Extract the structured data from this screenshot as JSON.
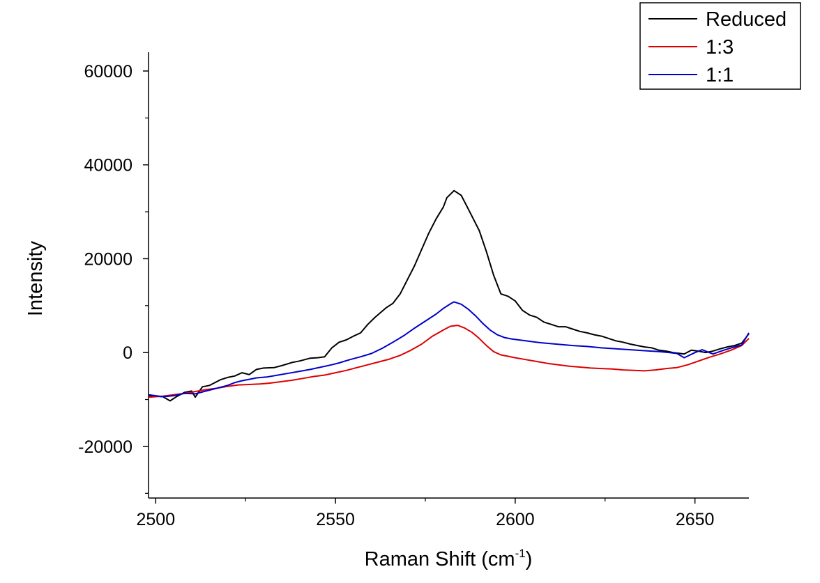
{
  "chart_data": {
    "type": "line",
    "xlabel": "Raman Shift (cm",
    "xlabel_sup": "-1",
    "xlabel_suffix": ")",
    "ylabel": "Intensity",
    "xlim": [
      2498,
      2665
    ],
    "ylim": [
      -31000,
      64000
    ],
    "xticks": [
      2500,
      2550,
      2600,
      2650
    ],
    "xticks_minor": [
      2525,
      2575,
      2625
    ],
    "yticks": [
      -20000,
      0,
      20000,
      40000,
      60000
    ],
    "yticks_minor": [
      -30000,
      -10000,
      10000,
      30000,
      50000
    ],
    "grid": false,
    "legend_position": "top-right",
    "series": [
      {
        "name": "Reduced",
        "color": "#000000",
        "x": [
          2498,
          2502,
          2504,
          2506,
          2508,
          2510,
          2511,
          2513,
          2515,
          2518,
          2520,
          2522,
          2524,
          2526,
          2528,
          2530,
          2533,
          2535,
          2538,
          2540,
          2543,
          2545,
          2547,
          2549,
          2551,
          2553,
          2555,
          2557,
          2559,
          2561,
          2564,
          2566,
          2568,
          2570,
          2572,
          2574,
          2576,
          2578,
          2580,
          2581,
          2583,
          2585,
          2587,
          2590,
          2592,
          2594,
          2596,
          2598,
          2600,
          2602,
          2604,
          2606,
          2608,
          2610,
          2612,
          2614,
          2616,
          2618,
          2620,
          2622,
          2624,
          2626,
          2628,
          2630,
          2632,
          2634,
          2636,
          2638,
          2640,
          2642,
          2644,
          2646,
          2647,
          2649,
          2651,
          2653,
          2655,
          2657,
          2659,
          2661,
          2663,
          2665
        ],
        "values": [
          -9200,
          -9400,
          -10300,
          -9300,
          -8500,
          -8200,
          -9500,
          -7300,
          -7000,
          -5800,
          -5300,
          -5000,
          -4300,
          -4700,
          -3600,
          -3300,
          -3200,
          -2800,
          -2100,
          -1800,
          -1200,
          -1100,
          -900,
          1000,
          2200,
          2700,
          3500,
          4200,
          6000,
          7500,
          9500,
          10500,
          12500,
          15500,
          18500,
          22000,
          25500,
          28500,
          31000,
          33000,
          34500,
          33500,
          30500,
          26000,
          21500,
          16500,
          12500,
          12000,
          11000,
          9000,
          8000,
          7500,
          6500,
          6000,
          5500,
          5500,
          5000,
          4500,
          4200,
          3800,
          3500,
          3000,
          2500,
          2200,
          1800,
          1500,
          1200,
          1000,
          500,
          300,
          0,
          -200,
          -300,
          500,
          300,
          0,
          300,
          800,
          1200,
          1500,
          2000,
          4000
        ]
      },
      {
        "name": "1:3",
        "color": "#dd0000",
        "x": [
          2498,
          2502,
          2505,
          2508,
          2511,
          2514,
          2517,
          2520,
          2523,
          2526,
          2529,
          2532,
          2535,
          2538,
          2541,
          2544,
          2547,
          2550,
          2553,
          2556,
          2559,
          2562,
          2565,
          2568,
          2571,
          2574,
          2577,
          2580,
          2582,
          2584,
          2586,
          2588,
          2590,
          2592,
          2594,
          2596,
          2598,
          2600,
          2603,
          2606,
          2609,
          2612,
          2615,
          2618,
          2621,
          2624,
          2627,
          2630,
          2633,
          2636,
          2639,
          2642,
          2645,
          2648,
          2651,
          2654,
          2657,
          2660,
          2663,
          2665
        ],
        "values": [
          -9500,
          -9300,
          -9000,
          -8700,
          -8300,
          -7900,
          -7600,
          -7200,
          -6900,
          -6800,
          -6700,
          -6500,
          -6200,
          -5900,
          -5500,
          -5100,
          -4800,
          -4300,
          -3800,
          -3200,
          -2600,
          -2000,
          -1400,
          -600,
          500,
          1800,
          3500,
          4800,
          5600,
          5800,
          5200,
          4300,
          3000,
          1500,
          200,
          -500,
          -800,
          -1100,
          -1500,
          -1900,
          -2300,
          -2600,
          -2900,
          -3100,
          -3300,
          -3400,
          -3500,
          -3700,
          -3800,
          -3900,
          -3700,
          -3400,
          -3200,
          -2600,
          -1800,
          -1000,
          -300,
          500,
          1500,
          3000
        ]
      },
      {
        "name": "1:1",
        "color": "#0000cc",
        "x": [
          2498,
          2502,
          2505,
          2508,
          2511,
          2514,
          2517,
          2520,
          2522,
          2524,
          2526,
          2528,
          2531,
          2534,
          2537,
          2540,
          2543,
          2546,
          2549,
          2551,
          2554,
          2557,
          2560,
          2563,
          2566,
          2569,
          2572,
          2575,
          2578,
          2580,
          2582,
          2583,
          2585,
          2587,
          2589,
          2591,
          2593,
          2595,
          2597,
          2599,
          2601,
          2604,
          2607,
          2610,
          2613,
          2616,
          2620,
          2624,
          2628,
          2632,
          2636,
          2640,
          2643,
          2645,
          2647,
          2650,
          2652,
          2655,
          2658,
          2661,
          2663,
          2665
        ],
        "values": [
          -9000,
          -9400,
          -9200,
          -8700,
          -8800,
          -8200,
          -7600,
          -7000,
          -6400,
          -6000,
          -5700,
          -5400,
          -5200,
          -4800,
          -4400,
          -4000,
          -3600,
          -3100,
          -2600,
          -2200,
          -1500,
          -900,
          -200,
          900,
          2200,
          3600,
          5200,
          6700,
          8200,
          9400,
          10400,
          10800,
          10300,
          9200,
          7800,
          6200,
          4800,
          3800,
          3200,
          2900,
          2700,
          2400,
          2100,
          1900,
          1700,
          1500,
          1300,
          1000,
          800,
          600,
          400,
          200,
          0,
          -200,
          -1100,
          0,
          600,
          -300,
          500,
          1200,
          1600,
          4200
        ]
      }
    ]
  }
}
